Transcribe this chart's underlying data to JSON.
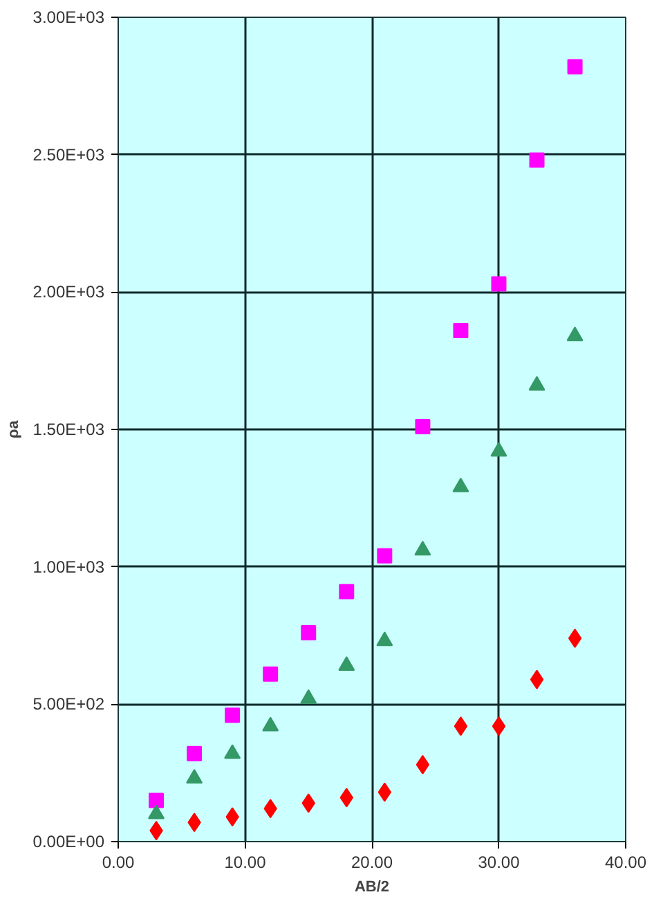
{
  "chart_data": {
    "type": "scatter",
    "xlabel": "AB/2",
    "ylabel": "ρa",
    "x": [
      3,
      6,
      9,
      12,
      15,
      18,
      21,
      24,
      27,
      30,
      33,
      36
    ],
    "series": [
      {
        "color": "#ff00ff",
        "marker": "square",
        "values": [
          150,
          320,
          460,
          610,
          760,
          910,
          1040,
          1510,
          1860,
          2030,
          2480,
          2820
        ]
      },
      {
        "color": "#339966",
        "marker": "triangle",
        "values": [
          100,
          230,
          320,
          420,
          520,
          640,
          730,
          1060,
          1290,
          1420,
          1660,
          1840
        ]
      },
      {
        "color": "#ff0000",
        "marker": "diamond",
        "values": [
          40,
          70,
          90,
          120,
          140,
          160,
          180,
          280,
          420,
          420,
          590,
          740
        ]
      }
    ],
    "xlim": [
      0,
      40
    ],
    "xticks": [
      {
        "value": 0,
        "label": "0.00"
      },
      {
        "value": 10,
        "label": "10.00"
      },
      {
        "value": 20,
        "label": "20.00"
      },
      {
        "value": 30,
        "label": "30.00"
      },
      {
        "value": 40,
        "label": "40.00"
      }
    ],
    "ylim": [
      0,
      3000
    ],
    "yticks": [
      {
        "value": 0,
        "label": "0.00E+00"
      },
      {
        "value": 500,
        "label": "5.00E+02"
      },
      {
        "value": 1000,
        "label": "1.00E+03"
      },
      {
        "value": 1500,
        "label": "1.50E+03"
      },
      {
        "value": 2000,
        "label": "2.00E+03"
      },
      {
        "value": 2500,
        "label": "2.50E+03"
      },
      {
        "value": 3000,
        "label": "3.00E+03"
      }
    ],
    "grid": true
  }
}
